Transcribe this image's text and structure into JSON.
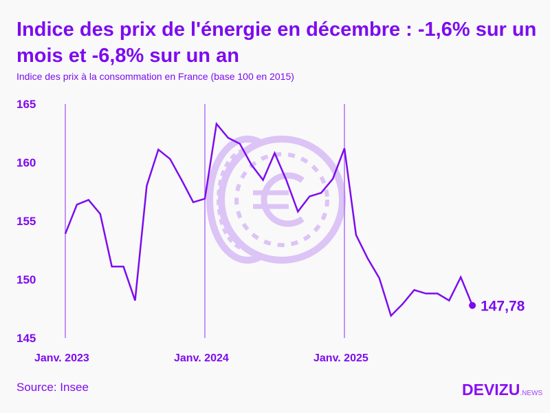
{
  "title": "Indice des prix de l'énergie en décembre : -1,6% sur un mois et -6,8% sur un an",
  "subtitle": "Indice des prix à la consommation en France (base 100 en 2015)",
  "source": "Source: Insee",
  "logo": {
    "main": "DEVIZU",
    "suffix": ".NEWS"
  },
  "colors": {
    "accent": "#7d0bf0",
    "gridline": "#b070f8",
    "watermark": "#dcc4f6"
  },
  "watermark_icon": "euro-coin-icon",
  "chart_data": {
    "type": "line",
    "title": "Indice des prix de l'énergie en décembre : -1,6% sur un mois et -6,8% sur un an",
    "xlabel": "",
    "ylabel": "",
    "ylim": [
      145,
      165
    ],
    "yticks": [
      "145",
      "150",
      "155",
      "160",
      "165"
    ],
    "ytick_values": [
      145,
      150,
      155,
      160,
      165
    ],
    "xticks": [
      "Janv. 2023",
      "Janv. 2024",
      "Janv. 2025"
    ],
    "xtick_index": [
      0,
      12,
      24
    ],
    "grid": "vertical lines at January",
    "x": [
      "2023-01",
      "2023-02",
      "2023-03",
      "2023-04",
      "2023-05",
      "2023-06",
      "2023-07",
      "2023-08",
      "2023-09",
      "2023-10",
      "2023-11",
      "2023-12",
      "2024-01",
      "2024-02",
      "2024-03",
      "2024-04",
      "2024-05",
      "2024-06",
      "2024-07",
      "2024-08",
      "2024-09",
      "2024-10",
      "2024-11",
      "2024-12",
      "2025-01",
      "2025-02",
      "2025-03",
      "2025-04",
      "2025-05",
      "2025-06",
      "2025-07",
      "2025-08",
      "2025-09",
      "2025-10",
      "2025-11",
      "2025-12"
    ],
    "values": [
      153.9,
      156.4,
      156.8,
      155.6,
      151.1,
      151.1,
      148.2,
      158.0,
      161.1,
      160.3,
      158.5,
      156.6,
      156.9,
      163.3,
      162.1,
      161.6,
      159.8,
      158.5,
      160.8,
      158.5,
      155.8,
      157.1,
      157.4,
      158.6,
      161.2,
      153.8,
      151.8,
      150.1,
      146.9,
      147.9,
      149.1,
      148.8,
      148.8,
      148.2,
      150.2,
      147.78
    ],
    "last_label": "147,78"
  }
}
